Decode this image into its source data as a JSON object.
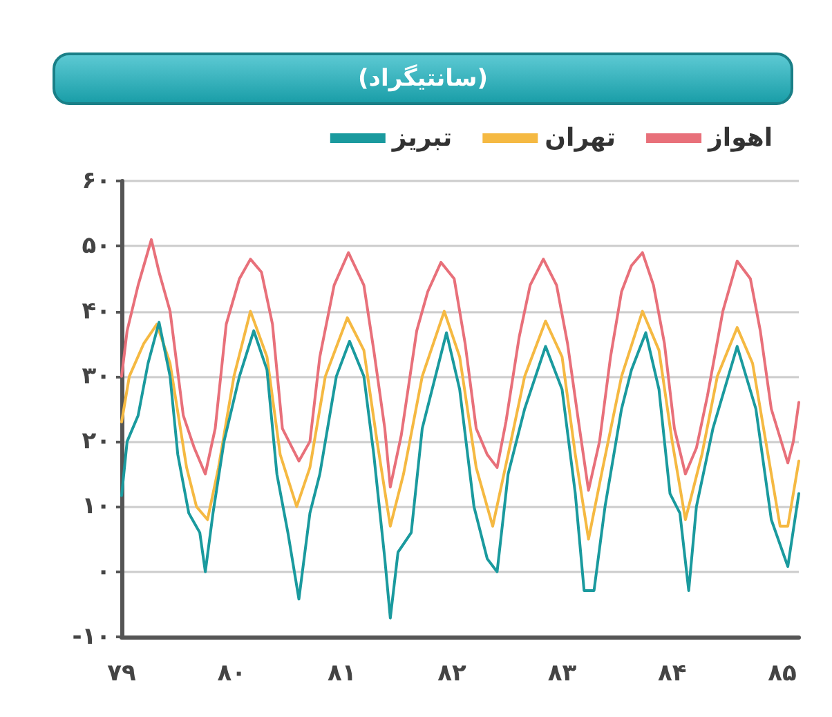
{
  "chart_data": {
    "type": "line",
    "title": "(سانتیگراد)",
    "xlim": [
      79,
      85.15
    ],
    "xticks": [
      {
        "value": 79,
        "label": "۷۹"
      },
      {
        "value": 80,
        "label": "۸۰"
      },
      {
        "value": 81,
        "label": "۸۱"
      },
      {
        "value": 82,
        "label": "۸۲"
      },
      {
        "value": 83,
        "label": "۸۳"
      },
      {
        "value": 84,
        "label": "۸۴"
      },
      {
        "value": 85,
        "label": "۸۵"
      }
    ],
    "ylim": [
      -10,
      60
    ],
    "yticks": [
      {
        "value": -10,
        "label": "-۱۰"
      },
      {
        "value": 0,
        "label": "۰"
      },
      {
        "value": 10,
        "label": "۱۰"
      },
      {
        "value": 20,
        "label": "۲۰"
      },
      {
        "value": 30,
        "label": "۳۰"
      },
      {
        "value": 40,
        "label": "۴۰"
      },
      {
        "value": 50,
        "label": "۵۰"
      },
      {
        "value": 60,
        "label": "۶۰"
      }
    ],
    "grid": "y",
    "legend": "top",
    "marker": "none",
    "line_style": "solid",
    "series": [
      {
        "name": "اهواز",
        "color": "#e8707a",
        "x": [
          79,
          79.05,
          79.15,
          79.27,
          79.34,
          79.44,
          79.56,
          79.66,
          79.76,
          79.85,
          79.95,
          80.07,
          80.17,
          80.27,
          80.37,
          80.46,
          80.61,
          80.71,
          80.8,
          80.93,
          81.06,
          81.2,
          81.29,
          81.39,
          81.44,
          81.54,
          81.68,
          81.78,
          81.9,
          82.02,
          82.12,
          82.22,
          82.32,
          82.41,
          82.49,
          82.61,
          82.71,
          82.83,
          82.95,
          83.05,
          83.15,
          83.24,
          83.34,
          83.44,
          83.54,
          83.63,
          83.73,
          83.83,
          83.93,
          84.02,
          84.12,
          84.22,
          84.32,
          84.46,
          84.59,
          84.71,
          84.8,
          84.9,
          85.05,
          85.1,
          85.15
        ],
        "values": [
          30,
          37,
          44,
          51,
          46,
          40,
          24,
          19,
          15,
          22,
          38,
          45,
          48,
          46,
          38,
          22,
          17,
          20,
          33,
          44,
          49,
          44,
          34,
          22,
          13,
          21,
          37,
          43,
          47.5,
          45,
          35,
          22,
          18,
          16,
          23,
          36,
          44,
          48,
          44,
          35,
          23,
          12.5,
          20,
          33,
          43,
          47,
          49,
          44,
          35,
          22,
          15,
          19,
          27,
          40,
          47.7,
          45,
          37,
          25,
          16.7,
          20,
          26
        ]
      },
      {
        "name": "تهران",
        "color": "#f5b942",
        "x": [
          79,
          79.07,
          79.2,
          79.32,
          79.44,
          79.59,
          79.68,
          79.78,
          79.88,
          80.02,
          80.17,
          80.32,
          80.44,
          80.59,
          80.71,
          80.85,
          81.05,
          81.2,
          81.32,
          81.44,
          81.56,
          81.73,
          81.93,
          82.07,
          82.22,
          82.37,
          82.51,
          82.66,
          82.85,
          83,
          83.12,
          83.24,
          83.37,
          83.54,
          83.73,
          83.88,
          84,
          84.12,
          84.27,
          84.41,
          84.59,
          84.73,
          84.85,
          84.98,
          85.05,
          85.15
        ],
        "values": [
          23,
          30,
          35,
          38,
          32,
          16,
          10,
          8,
          16,
          30,
          40,
          33,
          18,
          10,
          16,
          30,
          39,
          34,
          20,
          7,
          15,
          30,
          40,
          33,
          16,
          7,
          18,
          30,
          38.5,
          33,
          18,
          5,
          16,
          30,
          40,
          34,
          20,
          8,
          18,
          30,
          37.5,
          32,
          20,
          7,
          7,
          17
        ]
      },
      {
        "name": "تبریز",
        "color": "#1a9a9e",
        "x": [
          79,
          79.05,
          79.15,
          79.24,
          79.34,
          79.44,
          79.51,
          79.61,
          79.71,
          79.76,
          79.83,
          79.93,
          80.07,
          80.2,
          80.32,
          80.41,
          80.51,
          80.61,
          80.71,
          80.8,
          80.95,
          81.07,
          81.2,
          81.29,
          81.39,
          81.44,
          81.51,
          81.63,
          81.73,
          81.85,
          81.95,
          82.07,
          82.2,
          82.32,
          82.41,
          82.51,
          82.66,
          82.85,
          83,
          83.12,
          83.2,
          83.29,
          83.39,
          83.54,
          83.63,
          83.76,
          83.88,
          83.98,
          84.07,
          84.15,
          84.22,
          84.37,
          84.59,
          84.76,
          84.9,
          85.05,
          85.15
        ],
        "values": [
          11.7,
          20,
          24,
          32,
          38.3,
          30,
          18,
          9,
          6,
          0,
          9,
          20,
          30,
          37,
          31,
          15,
          6,
          -4.2,
          9,
          15,
          30,
          35.4,
          30,
          18,
          2,
          -7.1,
          3,
          6,
          22,
          30,
          36.7,
          28,
          10,
          2,
          0,
          15,
          25,
          34.6,
          28,
          12,
          -2.9,
          -2.9,
          10,
          25,
          31,
          36.7,
          28,
          12,
          9,
          -2.9,
          10,
          22,
          34.6,
          25,
          8,
          0.8,
          12
        ]
      }
    ]
  }
}
